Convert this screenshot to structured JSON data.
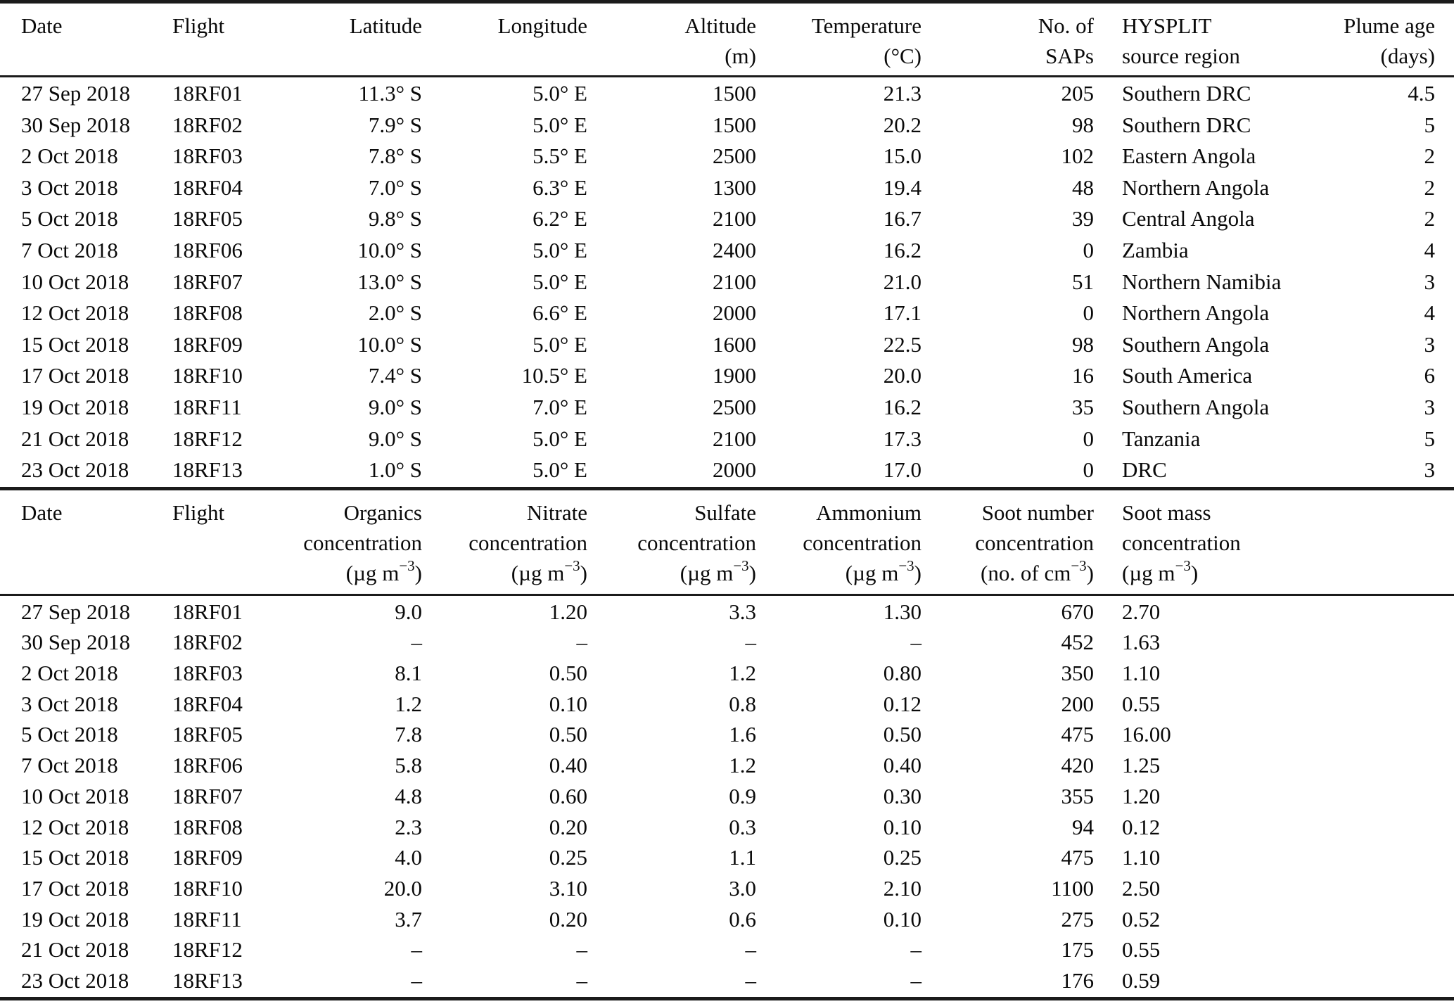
{
  "flight_overview_table": {
    "headers": [
      {
        "lines": [
          "Date"
        ],
        "align": "left"
      },
      {
        "lines": [
          "Flight"
        ],
        "align": "left"
      },
      {
        "lines": [
          "Latitude"
        ],
        "align": "right"
      },
      {
        "lines": [
          "Longitude"
        ],
        "align": "right"
      },
      {
        "lines": [
          "Altitude",
          "(m)"
        ],
        "align": "right"
      },
      {
        "lines": [
          "Temperature",
          "(°C)"
        ],
        "align": "right"
      },
      {
        "lines": [
          "No. of",
          "SAPs"
        ],
        "align": "right"
      },
      {
        "lines": [
          "HYSPLIT",
          "source region"
        ],
        "align": "left"
      },
      {
        "lines": [
          "Plume age",
          "(days)"
        ],
        "align": "right"
      }
    ],
    "rows": [
      [
        "27 Sep 2018",
        "18RF01",
        "11.3° S",
        "5.0° E",
        "1500",
        "21.3",
        "205",
        "Southern DRC",
        "4.5"
      ],
      [
        "30 Sep 2018",
        "18RF02",
        "7.9° S",
        "5.0° E",
        "1500",
        "20.2",
        "98",
        "Southern DRC",
        "5"
      ],
      [
        "2 Oct 2018",
        "18RF03",
        "7.8° S",
        "5.5° E",
        "2500",
        "15.0",
        "102",
        "Eastern Angola",
        "2"
      ],
      [
        "3 Oct 2018",
        "18RF04",
        "7.0° S",
        "6.3° E",
        "1300",
        "19.4",
        "48",
        "Northern Angola",
        "2"
      ],
      [
        "5 Oct 2018",
        "18RF05",
        "9.8° S",
        "6.2° E",
        "2100",
        "16.7",
        "39",
        "Central Angola",
        "2"
      ],
      [
        "7 Oct 2018",
        "18RF06",
        "10.0° S",
        "5.0° E",
        "2400",
        "16.2",
        "0",
        "Zambia",
        "4"
      ],
      [
        "10 Oct 2018",
        "18RF07",
        "13.0° S",
        "5.0° E",
        "2100",
        "21.0",
        "51",
        "Northern Namibia",
        "3"
      ],
      [
        "12 Oct 2018",
        "18RF08",
        "2.0° S",
        "6.6° E",
        "2000",
        "17.1",
        "0",
        "Northern Angola",
        "4"
      ],
      [
        "15 Oct 2018",
        "18RF09",
        "10.0° S",
        "5.0° E",
        "1600",
        "22.5",
        "98",
        "Southern Angola",
        "3"
      ],
      [
        "17 Oct 2018",
        "18RF10",
        "7.4° S",
        "10.5° E",
        "1900",
        "20.0",
        "16",
        "South America",
        "6"
      ],
      [
        "19 Oct 2018",
        "18RF11",
        "9.0° S",
        "7.0° E",
        "2500",
        "16.2",
        "35",
        "Southern Angola",
        "3"
      ],
      [
        "21 Oct 2018",
        "18RF12",
        "9.0° S",
        "5.0° E",
        "2100",
        "17.3",
        "0",
        "Tanzania",
        "5"
      ],
      [
        "23 Oct 2018",
        "18RF13",
        "1.0° S",
        "5.0° E",
        "2000",
        "17.0",
        "0",
        "DRC",
        "3"
      ]
    ]
  },
  "aerosol_concentration_table": {
    "headers": [
      {
        "lines": [
          "Date"
        ],
        "align": "left"
      },
      {
        "lines": [
          "Flight"
        ],
        "align": "left"
      },
      {
        "lines": [
          "Organics",
          "concentration",
          "(µg m^{−3})"
        ],
        "align": "right"
      },
      {
        "lines": [
          "Nitrate",
          "concentration",
          "(µg m^{−3})"
        ],
        "align": "right"
      },
      {
        "lines": [
          "Sulfate",
          "concentration",
          "(µg m^{−3})"
        ],
        "align": "right"
      },
      {
        "lines": [
          "Ammonium",
          "concentration",
          "(µg m^{−3})"
        ],
        "align": "right"
      },
      {
        "lines": [
          "Soot number",
          "concentration",
          "(no. of cm^{−3})"
        ],
        "align": "right"
      },
      {
        "lines": [
          "Soot mass",
          "concentration",
          "(µg m^{−3})"
        ],
        "align": "left"
      }
    ],
    "rows": [
      [
        "27 Sep 2018",
        "18RF01",
        "9.0",
        "1.20",
        "3.3",
        "1.30",
        "670",
        "2.70"
      ],
      [
        "30 Sep 2018",
        "18RF02",
        "–",
        "–",
        "–",
        "–",
        "452",
        "1.63"
      ],
      [
        "2 Oct 2018",
        "18RF03",
        "8.1",
        "0.50",
        "1.2",
        "0.80",
        "350",
        "1.10"
      ],
      [
        "3 Oct 2018",
        "18RF04",
        "1.2",
        "0.10",
        "0.8",
        "0.12",
        "200",
        "0.55"
      ],
      [
        "5 Oct 2018",
        "18RF05",
        "7.8",
        "0.50",
        "1.6",
        "0.50",
        "475",
        "16.00"
      ],
      [
        "7 Oct 2018",
        "18RF06",
        "5.8",
        "0.40",
        "1.2",
        "0.40",
        "420",
        "1.25"
      ],
      [
        "10 Oct 2018",
        "18RF07",
        "4.8",
        "0.60",
        "0.9",
        "0.30",
        "355",
        "1.20"
      ],
      [
        "12 Oct 2018",
        "18RF08",
        "2.3",
        "0.20",
        "0.3",
        "0.10",
        "94",
        "0.12"
      ],
      [
        "15 Oct 2018",
        "18RF09",
        "4.0",
        "0.25",
        "1.1",
        "0.25",
        "475",
        "1.10"
      ],
      [
        "17 Oct 2018",
        "18RF10",
        "20.0",
        "3.10",
        "3.0",
        "2.10",
        "1100",
        "2.50"
      ],
      [
        "19 Oct 2018",
        "18RF11",
        "3.7",
        "0.20",
        "0.6",
        "0.10",
        "275",
        "0.52"
      ],
      [
        "21 Oct 2018",
        "18RF12",
        "–",
        "–",
        "–",
        "–",
        "175",
        "0.55"
      ],
      [
        "23 Oct 2018",
        "18RF13",
        "–",
        "–",
        "–",
        "–",
        "176",
        "0.59"
      ]
    ]
  },
  "colors": {
    "background": "#ffffff",
    "text": "#0a0a0a",
    "rule": "#1b1b1b"
  }
}
